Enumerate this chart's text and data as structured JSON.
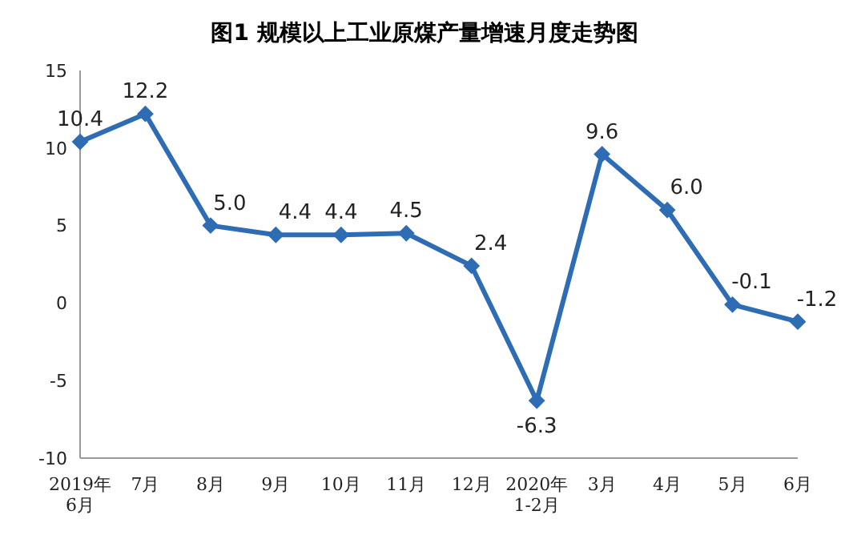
{
  "chart_data": {
    "type": "line",
    "title": "图1  规模以上工业原煤产量增速月度走势图",
    "categories": [
      "2019年\n6月",
      "7月",
      "8月",
      "9月",
      "10月",
      "11月",
      "12月",
      "2020年\n1-2月",
      "3月",
      "4月",
      "5月",
      "6月"
    ],
    "series": [
      {
        "color": "#2e6db4",
        "values": [
          10.4,
          12.2,
          5.0,
          4.4,
          4.4,
          4.5,
          2.4,
          -6.3,
          9.6,
          6.0,
          -0.1,
          -1.2
        ],
        "value_labels": [
          "10.4",
          "12.2",
          "5.0",
          "4.4",
          "4.4",
          "4.5",
          "2.4",
          "-6.3",
          "9.6",
          "6.0",
          "-0.1",
          "-1.2"
        ]
      }
    ],
    "ylim": [
      -10,
      15
    ],
    "yticks": [
      -10,
      -5,
      0,
      5,
      10,
      15
    ],
    "marker": "diamond",
    "line_style": "solid"
  }
}
